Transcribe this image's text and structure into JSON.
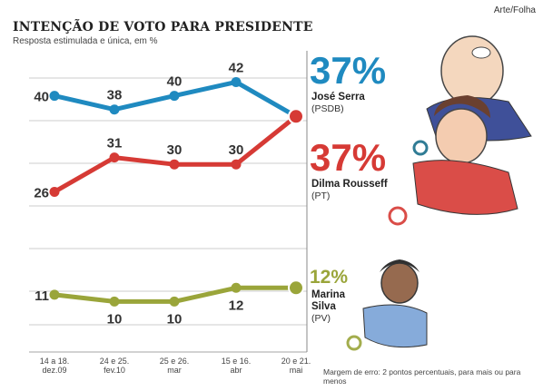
{
  "credit": "Arte/Folha",
  "footnote": "Margem de erro: 2 pontos percentuais, para mais ou para menos",
  "chart_data": {
    "type": "line",
    "title": "INTENÇÃO DE VOTO PARA PRESIDENTE",
    "subtitle": "Resposta estimulada e única, em %",
    "x": [
      [
        "14 a 18.",
        "dez.09"
      ],
      [
        "24 e 25.",
        "fev.10"
      ],
      [
        "25 e 26.",
        "mar"
      ],
      [
        "15 e 16.",
        "abr"
      ],
      [
        "20 e 21.",
        "mai"
      ]
    ],
    "ylim": [
      0,
      50
    ],
    "grid": true,
    "series": [
      {
        "name": "José Serra",
        "party": "(PSDB)",
        "latest": "37%",
        "color": "#1f8ac0",
        "values": [
          40,
          38,
          40,
          42,
          37
        ],
        "labels": [
          "40",
          "38",
          "40",
          "42",
          ""
        ]
      },
      {
        "name": "Dilma Rousseff",
        "party": "(PT)",
        "latest": "37%",
        "color": "#d63a35",
        "values": [
          26,
          31,
          30,
          30,
          37
        ],
        "labels": [
          "26",
          "31",
          "30",
          "30",
          ""
        ]
      },
      {
        "name": "Marina Silva",
        "party": "(PV)",
        "latest": "12%",
        "color": "#9aa53a",
        "values": [
          11,
          10,
          10,
          12,
          12
        ],
        "labels": [
          "11",
          "10",
          "10",
          "12",
          ""
        ]
      }
    ]
  }
}
